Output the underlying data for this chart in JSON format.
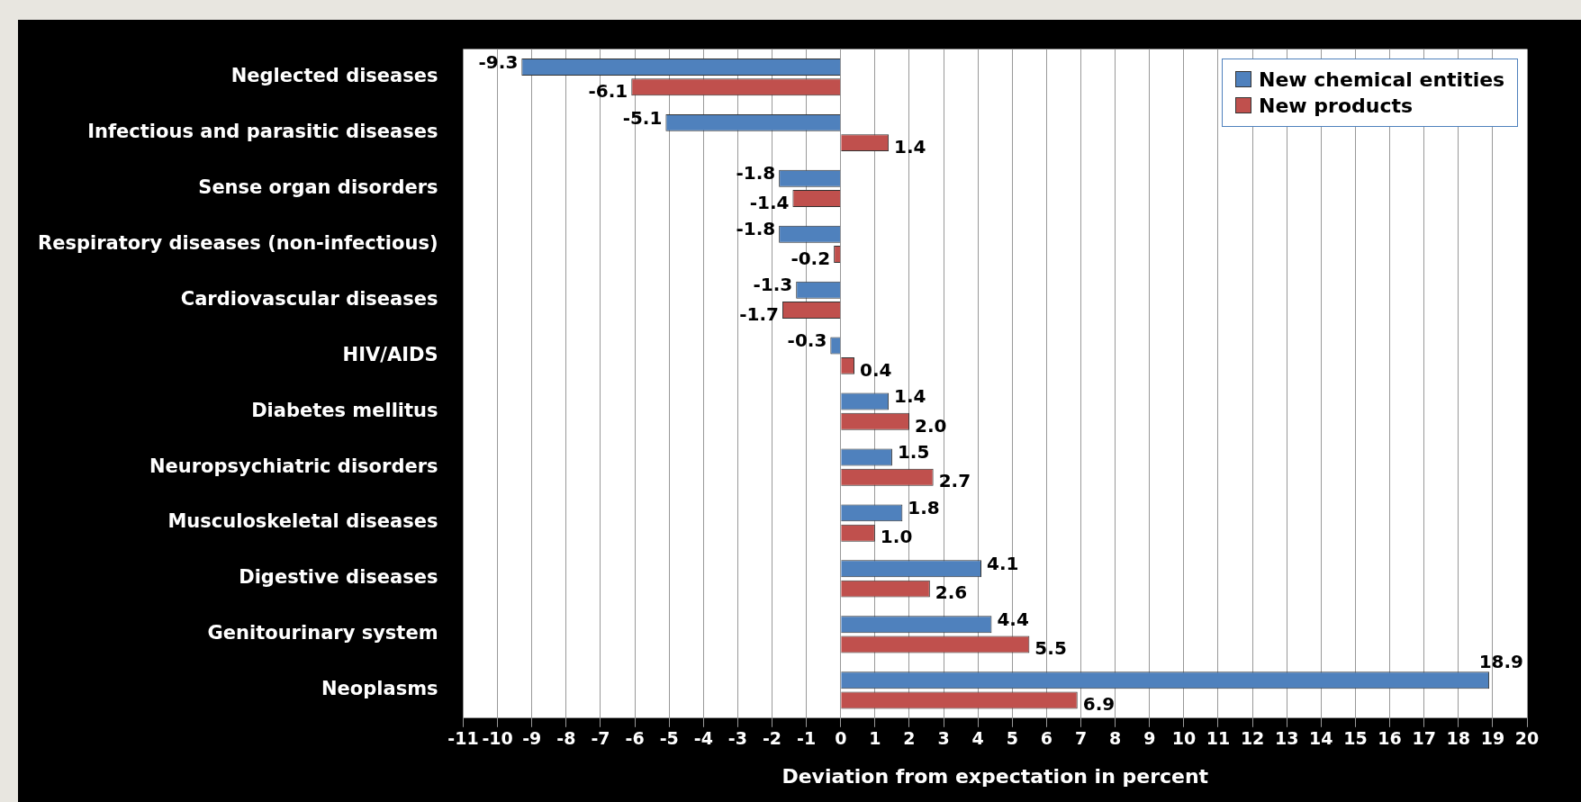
{
  "chart_data": {
    "type": "bar",
    "orientation": "horizontal",
    "xlabel": "Deviation from expectation in percent",
    "categories": [
      "Neglected diseases",
      "Infectious and parasitic diseases",
      "Sense organ disorders",
      "Respiratory diseases (non-infectious)",
      "Cardiovascular diseases",
      "HIV/AIDS",
      "Diabetes mellitus",
      "Neuropsychiatric disorders",
      "Musculoskeletal diseases",
      "Digestive diseases",
      "Genitourinary system",
      "Neoplasms"
    ],
    "series": [
      {
        "name": "New chemical entities",
        "color": "#4f81bd",
        "values": [
          -9.3,
          -5.1,
          -1.8,
          -1.8,
          -1.3,
          -0.3,
          1.4,
          1.5,
          1.8,
          4.1,
          4.4,
          18.9
        ],
        "value_labels": [
          "-9.3",
          "-5.1",
          "-1.8",
          "-1.8",
          "-1.3",
          "-0.3",
          "1.4",
          "1.5",
          "1.8",
          "4.1",
          "4.4",
          "18.9"
        ]
      },
      {
        "name": "New products",
        "color": "#c0504d",
        "values": [
          -6.1,
          1.4,
          -1.4,
          -0.2,
          -1.7,
          0.4,
          2.0,
          2.7,
          1.0,
          2.6,
          5.5,
          6.9
        ],
        "value_labels": [
          "-6.1",
          "1.4",
          "-1.4",
          "-0.2",
          "-1.7",
          "0.4",
          "2.0",
          "2.7",
          "1.0",
          "2.6",
          "5.5",
          "6.9"
        ]
      }
    ],
    "xlim": [
      -11,
      20
    ],
    "xticks": [
      -11,
      -10,
      -9,
      -8,
      -7,
      -6,
      -5,
      -4,
      -3,
      -2,
      -1,
      0,
      1,
      2,
      3,
      4,
      5,
      6,
      7,
      8,
      9,
      10,
      11,
      12,
      13,
      14,
      15,
      16,
      17,
      18,
      19,
      20
    ],
    "grid": "x",
    "legend": "top right"
  }
}
